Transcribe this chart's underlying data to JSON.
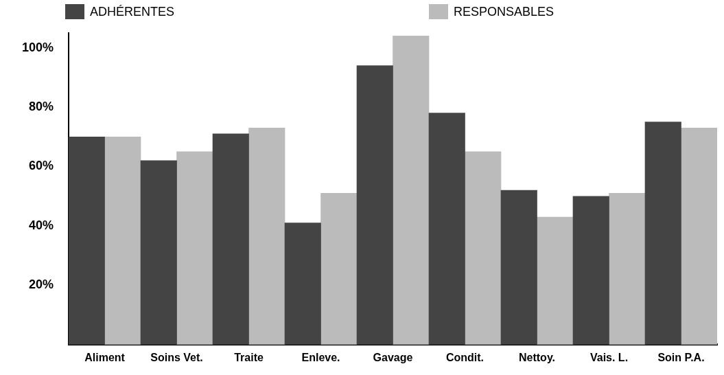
{
  "chart_data": {
    "type": "bar",
    "categories": [
      "Aliment",
      "Soins Vet.",
      "Traite",
      "Enleve.",
      "Gavage",
      "Condit.",
      "Nettoy.",
      "Vais. L.",
      "Soin P.A."
    ],
    "series": [
      {
        "name": "ADHÉRENTES",
        "color": "#444444",
        "values": [
          70,
          62,
          71,
          41,
          94,
          78,
          52,
          50,
          75
        ]
      },
      {
        "name": "RESPONSABLES",
        "color": "#bbbbbb",
        "values": [
          70,
          65,
          73,
          51,
          104,
          65,
          43,
          51,
          73
        ]
      }
    ],
    "ylim": [
      0,
      105
    ],
    "yticks": [
      {
        "value": 20,
        "label": "20%"
      },
      {
        "value": 40,
        "label": "40%"
      },
      {
        "value": 60,
        "label": "60%"
      },
      {
        "value": 80,
        "label": "80%"
      },
      {
        "value": 100,
        "label": "100%"
      }
    ],
    "grid": false,
    "legend": "top"
  }
}
